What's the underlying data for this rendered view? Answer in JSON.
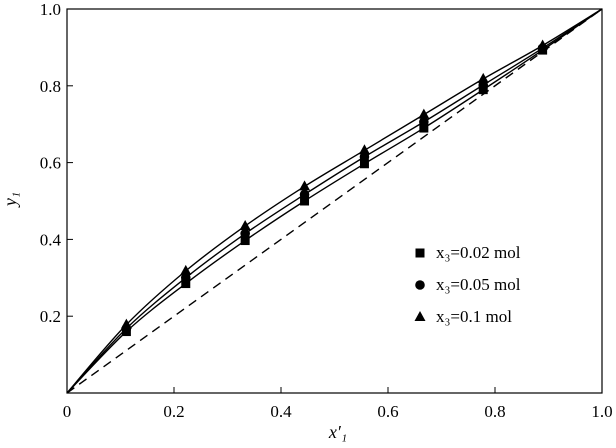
{
  "chart_data": {
    "type": "line",
    "title": "",
    "xlabel": "x′₁",
    "ylabel": "y₁",
    "xlim": [
      0,
      1.0
    ],
    "ylim": [
      0,
      1.0
    ],
    "xticks": [
      "0",
      "0.2",
      "0.4",
      "0.6",
      "0.8",
      "1.0"
    ],
    "yticks": [
      "0.2",
      "0.4",
      "0.6",
      "0.8",
      "1.0"
    ],
    "grid": false,
    "legend_position": "lower-right",
    "reference_line": {
      "style": "dashed",
      "x": [
        0,
        1.0
      ],
      "y": [
        0,
        1.0
      ]
    },
    "series": [
      {
        "name": "x₃=0.02 mol",
        "marker": "square",
        "x": [
          0,
          0.111,
          0.222,
          0.333,
          0.444,
          0.556,
          0.667,
          0.778,
          0.889,
          1.0
        ],
        "y": [
          0,
          0.16,
          0.285,
          0.397,
          0.5,
          0.597,
          0.69,
          0.79,
          0.893,
          1.0
        ]
      },
      {
        "name": "x₃=0.05 mol",
        "marker": "circle",
        "x": [
          0,
          0.111,
          0.222,
          0.333,
          0.444,
          0.556,
          0.667,
          0.778,
          0.889,
          1.0
        ],
        "y": [
          0,
          0.168,
          0.3,
          0.415,
          0.517,
          0.615,
          0.706,
          0.802,
          0.898,
          1.0
        ]
      },
      {
        "name": "x₃=0.1 mol",
        "marker": "triangle",
        "x": [
          0,
          0.111,
          0.222,
          0.333,
          0.444,
          0.556,
          0.667,
          0.778,
          0.889,
          1.0
        ],
        "y": [
          0,
          0.178,
          0.318,
          0.435,
          0.538,
          0.632,
          0.725,
          0.818,
          0.905,
          1.0
        ]
      }
    ]
  }
}
